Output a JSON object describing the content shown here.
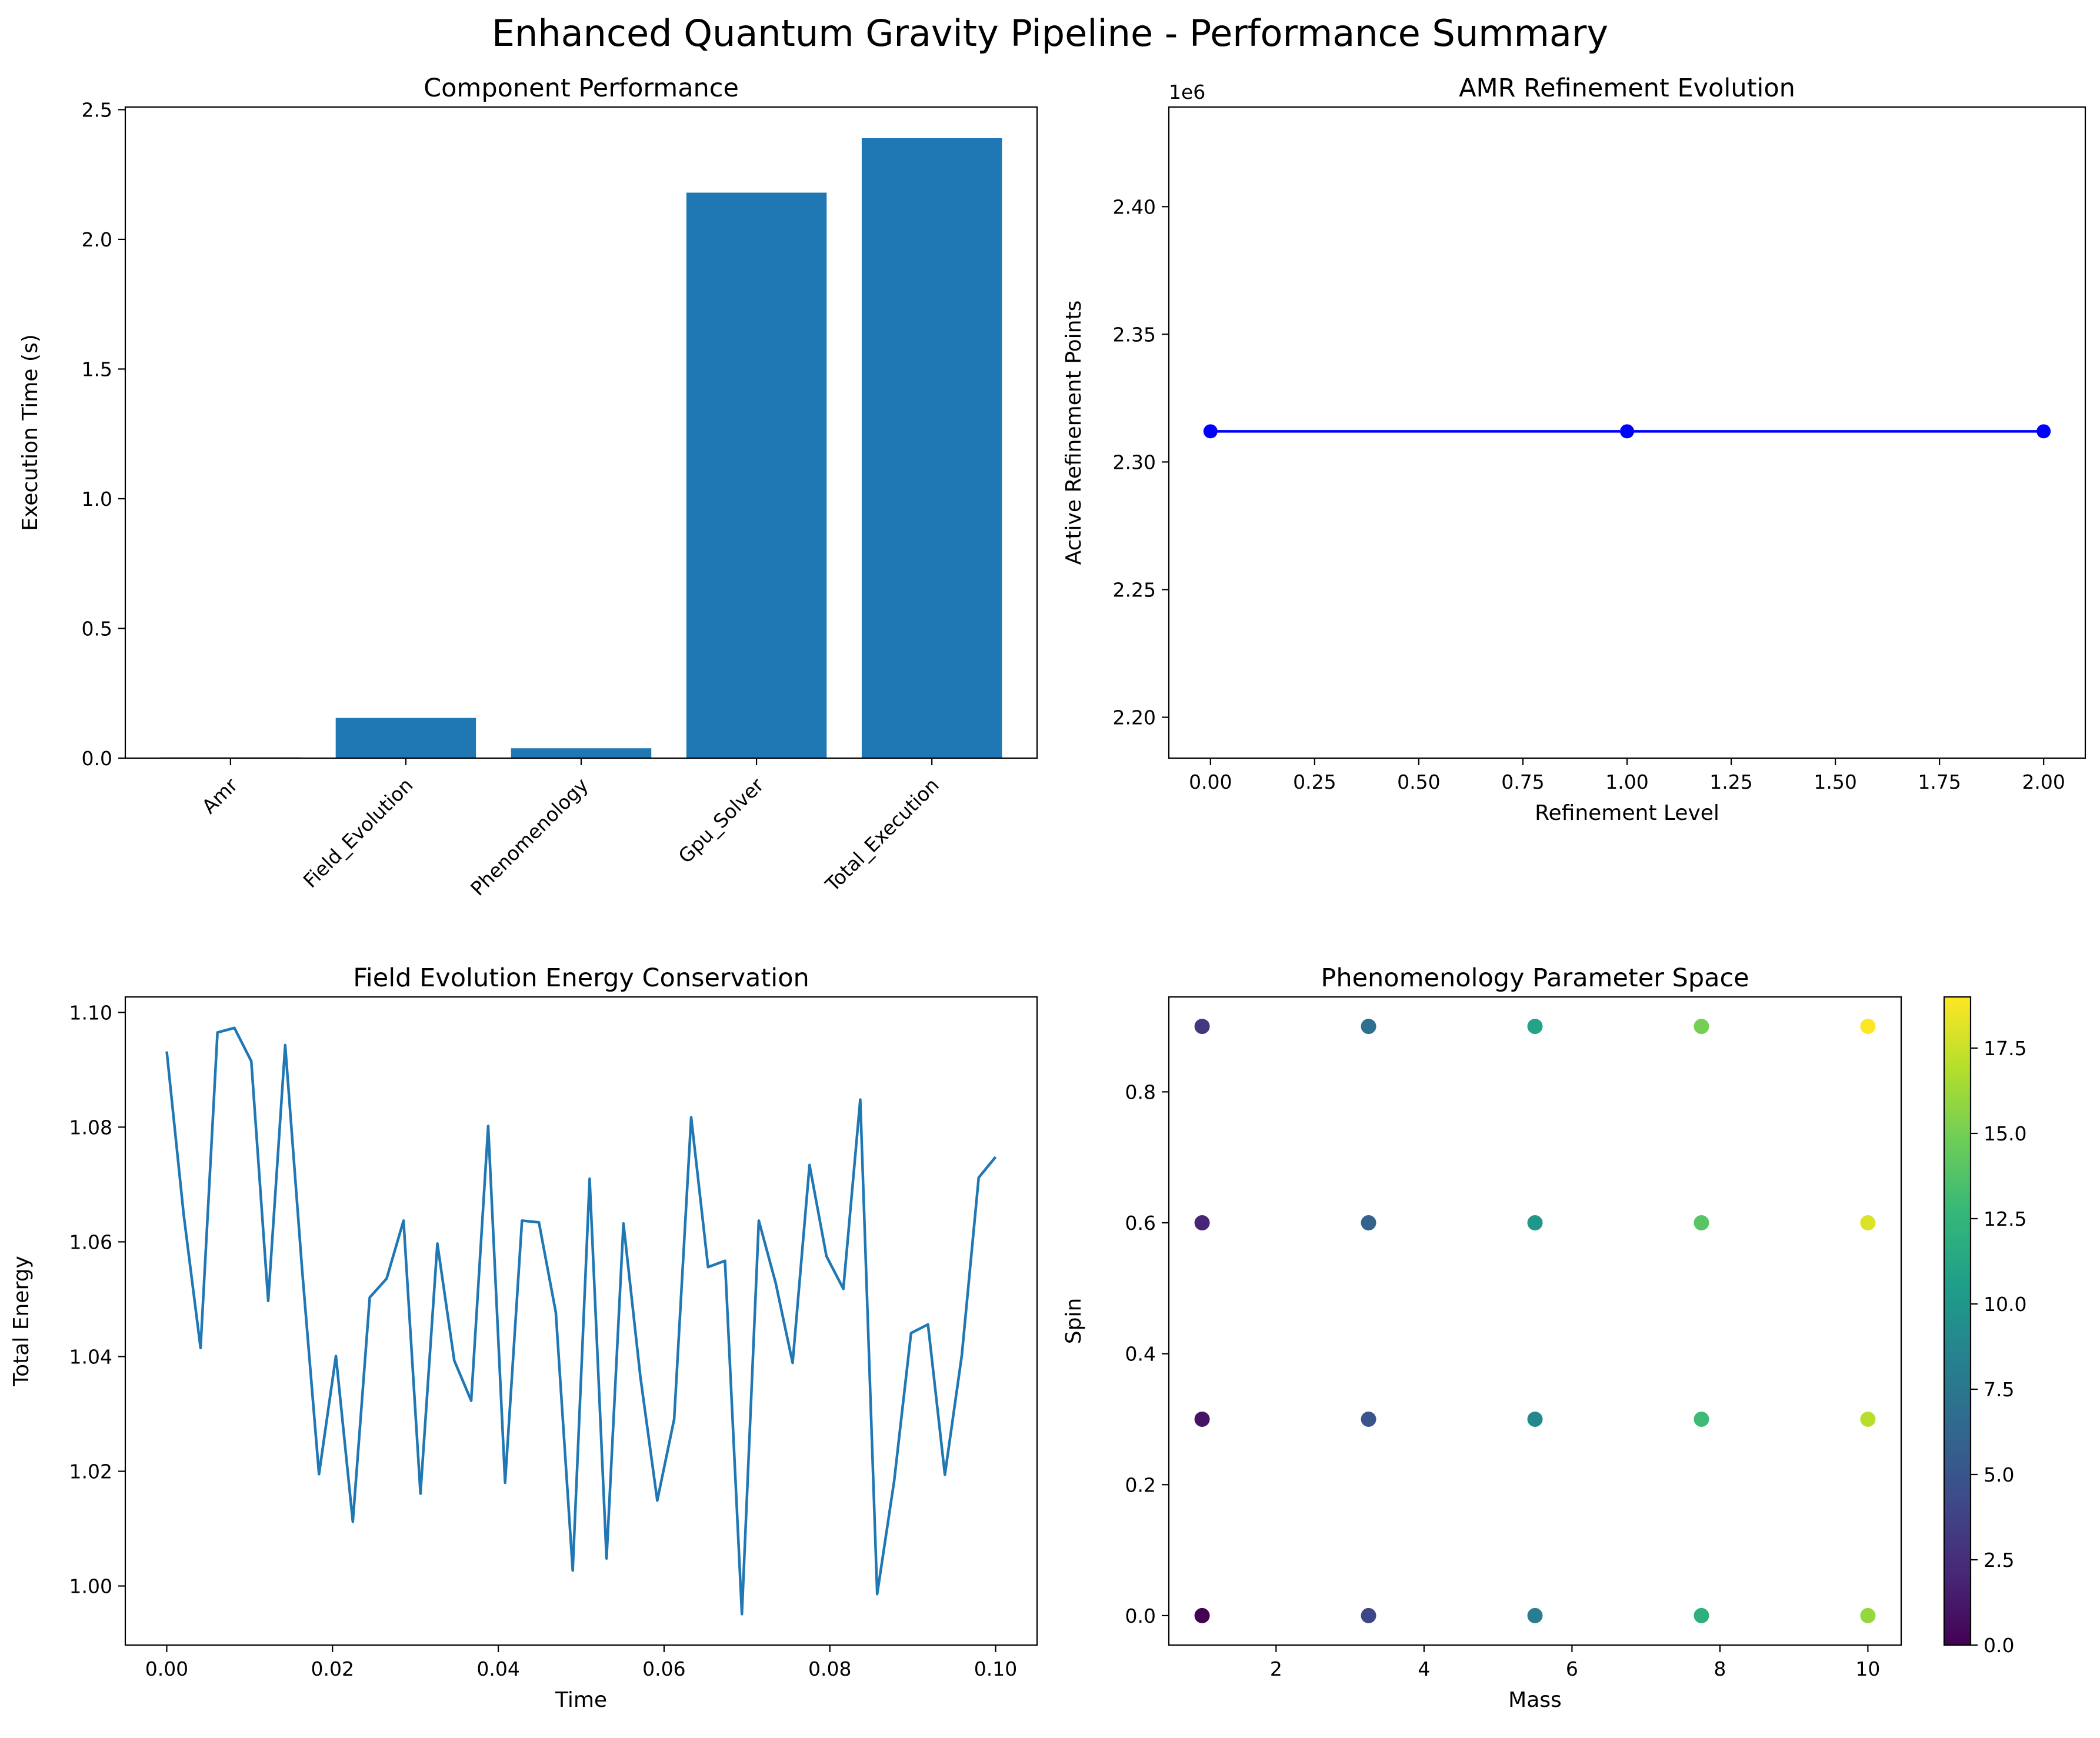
{
  "figure": {
    "suptitle": "Enhanced Quantum Gravity Pipeline - Performance Summary"
  },
  "chart_data": [
    {
      "type": "bar",
      "title": "Component Performance",
      "xlabel": "",
      "ylabel": "Execution Time (s)",
      "categories": [
        "Amr",
        "Field_Evolution",
        "Phenomenology",
        "Gpu_Solver",
        "Total_Execution"
      ],
      "values": [
        0.003,
        0.155,
        0.038,
        2.18,
        2.39
      ],
      "ylim": [
        0,
        2.51
      ],
      "yticks": [
        0.0,
        0.5,
        1.0,
        1.5,
        2.0,
        2.5
      ],
      "ytick_labels": [
        "0.0",
        "0.5",
        "1.0",
        "1.5",
        "2.0",
        "2.5"
      ],
      "bar_color": "#1f77b4",
      "xtick_rotation": 45
    },
    {
      "type": "line",
      "title": "AMR Refinement Evolution",
      "xlabel": "Refinement Level",
      "ylabel": "Active Refinement Points",
      "offset_label": "1e6",
      "x": [
        0,
        1,
        2
      ],
      "y": [
        2312000,
        2312000,
        2312000
      ],
      "xlim": [
        -0.1,
        2.1
      ],
      "ylim": [
        2184000,
        2439000
      ],
      "xticks": [
        0.0,
        0.25,
        0.5,
        0.75,
        1.0,
        1.25,
        1.5,
        1.75,
        2.0
      ],
      "xtick_labels": [
        "0.00",
        "0.25",
        "0.50",
        "0.75",
        "1.00",
        "1.25",
        "1.50",
        "1.75",
        "2.00"
      ],
      "yticks": [
        2200000,
        2250000,
        2300000,
        2350000,
        2400000
      ],
      "ytick_labels": [
        "2.20",
        "2.25",
        "2.30",
        "2.35",
        "2.40"
      ],
      "color": "#0000ff",
      "marker": "circle"
    },
    {
      "type": "line",
      "title": "Field Evolution Energy Conservation",
      "xlabel": "Time",
      "ylabel": "Total Energy",
      "x": [
        0.0,
        0.00204,
        0.00408,
        0.00612,
        0.00816,
        0.0102,
        0.01224,
        0.01429,
        0.01633,
        0.01837,
        0.02041,
        0.02245,
        0.02449,
        0.02653,
        0.02857,
        0.03061,
        0.03265,
        0.03469,
        0.03673,
        0.03878,
        0.04082,
        0.04286,
        0.0449,
        0.04694,
        0.04898,
        0.05102,
        0.05306,
        0.0551,
        0.05714,
        0.05918,
        0.06122,
        0.06327,
        0.06531,
        0.06735,
        0.06939,
        0.07143,
        0.07347,
        0.07551,
        0.07755,
        0.07959,
        0.08163,
        0.08367,
        0.08571,
        0.08776,
        0.0898,
        0.09184,
        0.09388,
        0.09592,
        0.09796,
        0.1
      ],
      "y": [
        1.0932,
        1.0648,
        1.0415,
        1.0965,
        1.0973,
        1.0915,
        1.0497,
        1.0943,
        1.0552,
        1.0195,
        1.0401,
        1.0112,
        1.0503,
        1.0536,
        1.0637,
        1.0161,
        1.0597,
        1.0393,
        1.0323,
        1.0802,
        1.018,
        1.0637,
        1.0634,
        1.0477,
        1.0027,
        1.071,
        1.0048,
        1.0632,
        1.0365,
        1.0149,
        1.0291,
        1.0817,
        1.0556,
        1.0567,
        0.9951,
        1.0637,
        1.0528,
        1.0389,
        1.0734,
        1.0575,
        1.0518,
        1.0848,
        0.9986,
        1.0183,
        1.0441,
        1.0456,
        1.0194,
        1.0402,
        1.0712,
        1.0748
      ],
      "xlim": [
        -0.005,
        0.105
      ],
      "ylim": [
        0.9897,
        1.1027
      ],
      "xticks": [
        0.0,
        0.02,
        0.04,
        0.06,
        0.08,
        0.1
      ],
      "xtick_labels": [
        "0.00",
        "0.02",
        "0.04",
        "0.06",
        "0.08",
        "0.10"
      ],
      "yticks": [
        1.0,
        1.02,
        1.04,
        1.06,
        1.08,
        1.1
      ],
      "ytick_labels": [
        "1.00",
        "1.02",
        "1.04",
        "1.06",
        "1.08",
        "1.10"
      ],
      "color": "#1f77b4"
    },
    {
      "type": "scatter",
      "title": "Phenomenology Parameter Space",
      "xlabel": "Mass",
      "ylabel": "Spin",
      "masses": [
        1.0,
        3.25,
        5.5,
        7.75,
        10.0
      ],
      "spins": [
        0.0,
        0.3,
        0.6,
        0.9
      ],
      "colorscale": "viridis",
      "color_range": [
        0,
        19
      ],
      "points_note_color_value_is_index": true,
      "xlim": [
        0.55,
        10.45
      ],
      "ylim": [
        -0.045,
        0.945
      ],
      "xticks": [
        2,
        4,
        6,
        8,
        10
      ],
      "xtick_labels": [
        "2",
        "4",
        "6",
        "8",
        "10"
      ],
      "yticks": [
        0.0,
        0.2,
        0.4,
        0.6,
        0.8
      ],
      "ytick_labels": [
        "0.0",
        "0.2",
        "0.4",
        "0.6",
        "0.8"
      ],
      "colorbar_ticks": [
        0.0,
        2.5,
        5.0,
        7.5,
        10.0,
        12.5,
        15.0,
        17.5
      ],
      "colorbar_tick_labels": [
        "0.0",
        "2.5",
        "5.0",
        "7.5",
        "10.0",
        "12.5",
        "15.0",
        "17.5"
      ]
    }
  ]
}
